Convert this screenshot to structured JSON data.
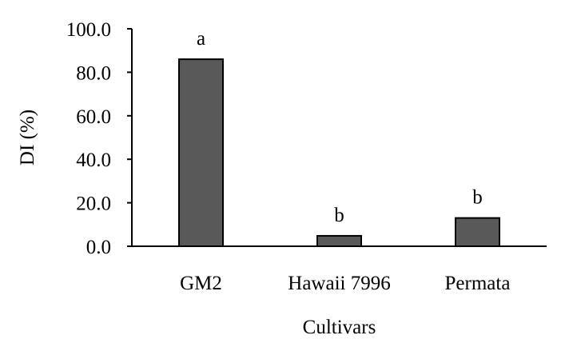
{
  "chart_data": {
    "type": "bar",
    "title": "",
    "xlabel": "Cultivars",
    "ylabel": "DI (%)",
    "categories": [
      "GM2",
      "Hawaii 7996",
      "Permata"
    ],
    "values": [
      86.0,
      4.8,
      13.0
    ],
    "significance_letters": [
      "a",
      "b",
      "b"
    ],
    "ylim": [
      0,
      100
    ],
    "y_ticks": [
      0,
      20,
      40,
      60,
      80,
      100
    ],
    "y_tick_labels": [
      "0.0",
      "20.0",
      "40.0",
      "60.0",
      "80.0",
      "100.0"
    ],
    "grid": false,
    "legend": "none",
    "bar_color": "#595959",
    "bar_edge_color": "#000000"
  }
}
